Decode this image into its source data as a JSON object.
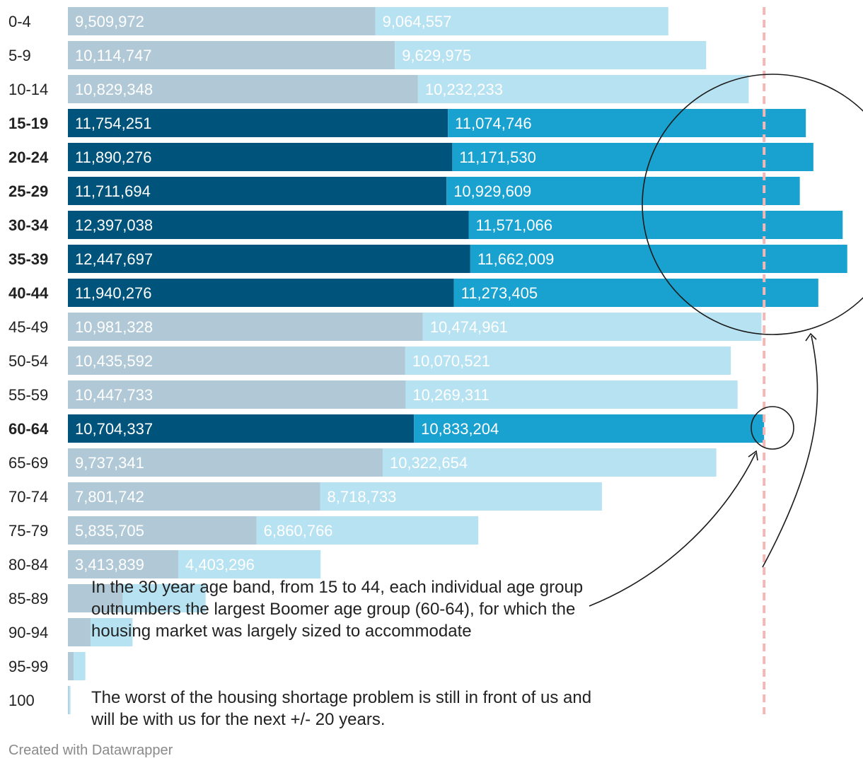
{
  "chart_data": {
    "type": "bar",
    "orientation": "horizontal",
    "stacked": true,
    "categories": [
      "0-4",
      "5-9",
      "10-14",
      "15-19",
      "20-24",
      "25-29",
      "30-34",
      "35-39",
      "40-44",
      "45-49",
      "50-54",
      "55-59",
      "60-64",
      "65-69",
      "70-74",
      "75-79",
      "80-84",
      "85-89",
      "90-94",
      "95-99",
      "100"
    ],
    "highlighted": [
      "15-19",
      "20-24",
      "25-29",
      "30-34",
      "35-39",
      "40-44",
      "60-64"
    ],
    "series": [
      {
        "name": "series-1",
        "values": [
          9509972,
          10114747,
          10829348,
          11754251,
          11890276,
          11711694,
          12397038,
          12447697,
          11940276,
          10981328,
          10435592,
          10447733,
          10704337,
          9737341,
          7801742,
          5835705,
          3413839,
          1700000,
          700000,
          180000,
          30000
        ],
        "labels": [
          "9,509,972",
          "10,114,747",
          "10,829,348",
          "11,754,251",
          "11,890,276",
          "11,711,694",
          "12,397,038",
          "12,447,697",
          "11,940,276",
          "10,981,328",
          "10,435,592",
          "10,447,733",
          "10,704,337",
          "9,737,341",
          "7,801,742",
          "5,835,705",
          "3,413,839",
          "",
          "",
          "",
          ""
        ],
        "color_highlight": "#00537a",
        "color_muted": "#b1c9d6"
      },
      {
        "name": "series-2",
        "values": [
          9064557,
          9629975,
          10232233,
          11074746,
          11171530,
          10929609,
          11571066,
          11662009,
          11273405,
          10474961,
          10070521,
          10269311,
          10833204,
          10322654,
          8718733,
          6860766,
          4403296,
          2560000,
          1300000,
          360000,
          50000
        ],
        "labels": [
          "9,064,557",
          "9,629,975",
          "10,232,233",
          "11,074,746",
          "11,171,530",
          "10,929,609",
          "11,571,066",
          "11,662,009",
          "11,273,405",
          "10,474,961",
          "10,070,521",
          "10,269,311",
          "10,833,204",
          "10,322,654",
          "8,718,733",
          "6,860,766",
          "4,403,296",
          "",
          "",
          "",
          ""
        ],
        "color_highlight": "#19a1cf",
        "color_muted": "#b7e2f1"
      }
    ],
    "reference_line": {
      "value": 21537541,
      "label": "",
      "color": "#f2b8b8"
    },
    "annotations": [
      {
        "id": "annotation-1",
        "text": "In the 30 year age band, from 15 to 44, each individual age group outnumbers the largest Boomer age group (60-64), for which the housing market was largely sized to accommodate"
      },
      {
        "id": "annotation-2",
        "text": "The worst of the housing shortage problem is still in front of us and will be with us for the next +/- 20 years."
      }
    ],
    "title": "",
    "xlabel": "",
    "ylabel": "",
    "grid": false,
    "legend": "none"
  },
  "footer": {
    "credit": "Created with Datawrapper"
  }
}
